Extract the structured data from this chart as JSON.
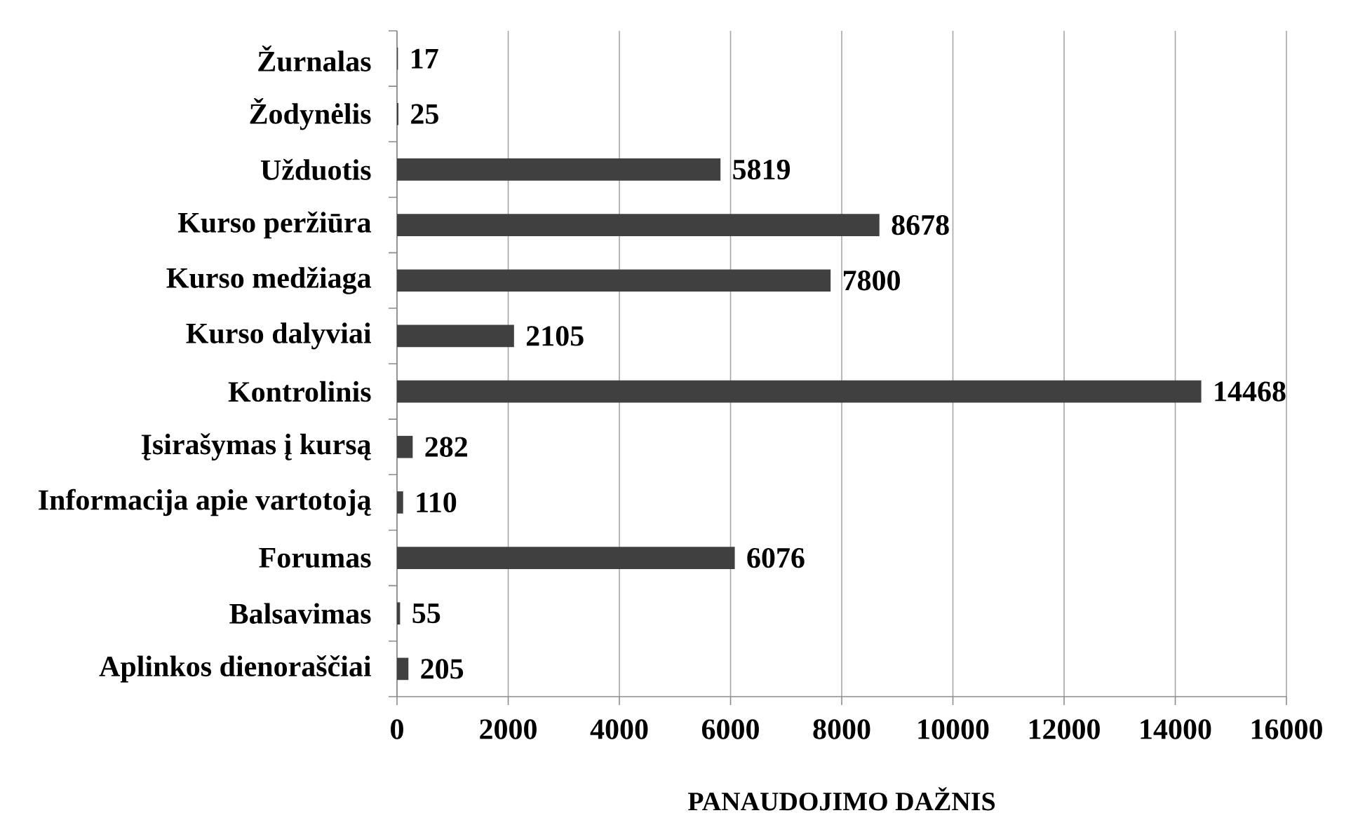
{
  "chart_data": {
    "type": "bar",
    "orientation": "horizontal",
    "categories": [
      "Žurnalas",
      "Žodynėlis",
      "Užduotis",
      "Kurso peržiūra",
      "Kurso medžiaga",
      "Kurso dalyviai",
      "Kontrolinis",
      "Įsirašymas į kursą",
      "Informacija apie vartotoją",
      "Forumas",
      "Balsavimas",
      "Aplinkos dienoraščiai"
    ],
    "values": [
      17,
      25,
      5819,
      8678,
      7800,
      2105,
      14468,
      282,
      110,
      6076,
      55,
      205
    ],
    "color": "#404040",
    "xlabel": "PANAUDOJIMO DAŽNIS",
    "xlim": [
      0,
      16000
    ],
    "xticks": [
      0,
      2000,
      4000,
      6000,
      8000,
      10000,
      12000,
      14000,
      16000
    ],
    "grid": "x",
    "data_labels": true
  }
}
